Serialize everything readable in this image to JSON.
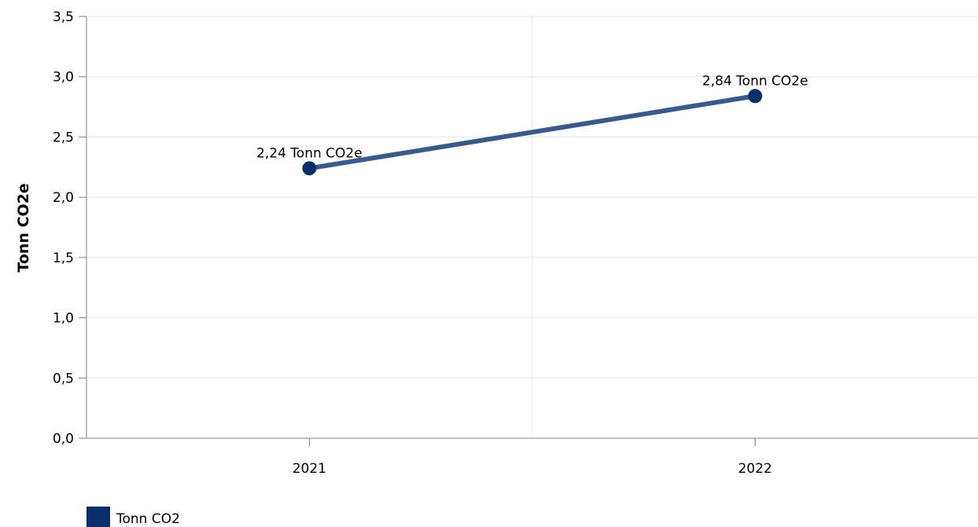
{
  "chart_data": {
    "type": "line",
    "title": "",
    "xlabel": "",
    "ylabel": "Tonn CO2e",
    "categories": [
      "2021",
      "2022"
    ],
    "series": [
      {
        "name": "Tonn CO2",
        "values": [
          2.24,
          2.84
        ],
        "data_labels": [
          "2,24 Tonn CO2e",
          "2,84 Tonn CO2e"
        ],
        "color": "#0a2f6b",
        "line_color": "#3a5a8c"
      }
    ],
    "y_ticks": [
      "0,0",
      "0,5",
      "1,0",
      "1,5",
      "2,0",
      "2,5",
      "3,0",
      "3,5"
    ],
    "ylim": [
      0,
      3.5
    ],
    "ystep": 0.5,
    "grid": true,
    "legend": {
      "position": "bottom-left"
    },
    "colors": {
      "gridline": "#e6e6e6",
      "axis": "#808080"
    }
  }
}
